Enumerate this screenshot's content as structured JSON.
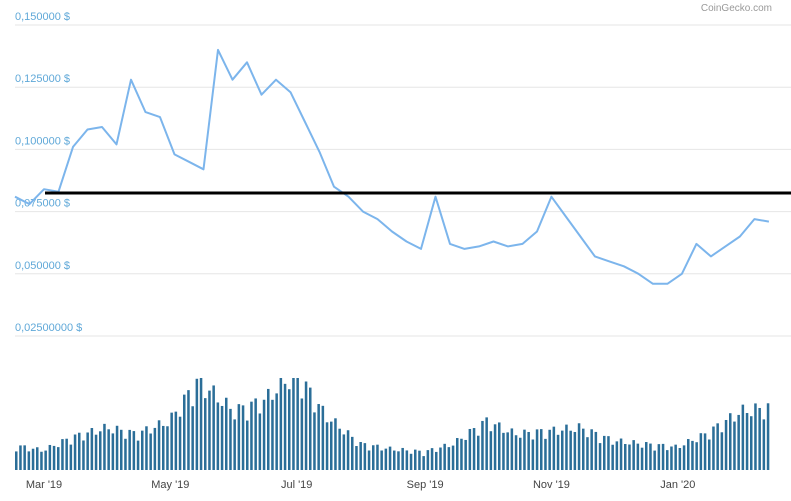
{
  "chart_data": {
    "type": "line",
    "credit": "CoinGecko.com",
    "y_ticks": [
      {
        "value": 0.15,
        "label": "0,150000 $"
      },
      {
        "value": 0.125,
        "label": "0,125000 $"
      },
      {
        "value": 0.1,
        "label": "0,100000 $"
      },
      {
        "value": 0.075,
        "label": "0,075000 $"
      },
      {
        "value": 0.05,
        "label": "0,050000 $"
      },
      {
        "value": 0.025,
        "label": "0,02500000 $"
      }
    ],
    "ylim": [
      0.025,
      0.15
    ],
    "x_ticks": [
      {
        "date": "2019-03-01",
        "label": "Mar '19"
      },
      {
        "date": "2019-05-01",
        "label": "May '19"
      },
      {
        "date": "2019-07-01",
        "label": "Jul '19"
      },
      {
        "date": "2019-09-01",
        "label": "Sep '19"
      },
      {
        "date": "2019-11-01",
        "label": "Nov '19"
      },
      {
        "date": "2020-01-01",
        "label": "Jan '20"
      }
    ],
    "xlim": [
      "2019-02-15",
      "2020-02-15"
    ],
    "grid": true,
    "colors": {
      "price_line": "#7cb5ec",
      "volume_bars": "#2b6e98",
      "reference_line": "#000000",
      "grid": "#e6e6e6"
    },
    "reference_line": {
      "value": 0.0825
    },
    "price": {
      "x": [
        "2019-02-15",
        "2019-02-22",
        "2019-03-01",
        "2019-03-08",
        "2019-03-15",
        "2019-03-22",
        "2019-03-29",
        "2019-04-05",
        "2019-04-12",
        "2019-04-19",
        "2019-04-26",
        "2019-05-03",
        "2019-05-10",
        "2019-05-17",
        "2019-05-24",
        "2019-05-31",
        "2019-06-07",
        "2019-06-14",
        "2019-06-21",
        "2019-06-28",
        "2019-07-05",
        "2019-07-12",
        "2019-07-19",
        "2019-07-26",
        "2019-08-02",
        "2019-08-09",
        "2019-08-16",
        "2019-08-23",
        "2019-08-30",
        "2019-09-06",
        "2019-09-13",
        "2019-09-20",
        "2019-09-27",
        "2019-10-04",
        "2019-10-11",
        "2019-10-18",
        "2019-10-25",
        "2019-11-01",
        "2019-11-08",
        "2019-11-15",
        "2019-11-22",
        "2019-11-29",
        "2019-12-06",
        "2019-12-13",
        "2019-12-20",
        "2019-12-27",
        "2020-01-03",
        "2020-01-10",
        "2020-01-17",
        "2020-01-24",
        "2020-01-31",
        "2020-02-07",
        "2020-02-14"
      ],
      "y": [
        0.081,
        0.078,
        0.084,
        0.083,
        0.101,
        0.108,
        0.109,
        0.102,
        0.128,
        0.115,
        0.113,
        0.098,
        0.095,
        0.092,
        0.14,
        0.128,
        0.135,
        0.122,
        0.128,
        0.123,
        0.111,
        0.099,
        0.085,
        0.081,
        0.075,
        0.072,
        0.067,
        0.063,
        0.06,
        0.081,
        0.062,
        0.06,
        0.061,
        0.063,
        0.061,
        0.062,
        0.067,
        0.081,
        0.073,
        0.065,
        0.057,
        0.055,
        0.053,
        0.05,
        0.046,
        0.046,
        0.05,
        0.062,
        0.057,
        0.061,
        0.065,
        0.072,
        0.071
      ]
    },
    "volume": {
      "x": [
        "2019-02-15",
        "2019-03-01",
        "2019-03-15",
        "2019-04-01",
        "2019-04-15",
        "2019-05-01",
        "2019-05-15",
        "2019-06-01",
        "2019-06-15",
        "2019-07-01",
        "2019-07-15",
        "2019-08-01",
        "2019-08-15",
        "2019-09-01",
        "2019-09-15",
        "2019-10-01",
        "2019-10-15",
        "2019-11-01",
        "2019-11-15",
        "2019-12-01",
        "2019-12-15",
        "2020-01-01",
        "2020-01-15",
        "2020-02-01",
        "2020-02-14"
      ],
      "y": [
        15,
        12,
        20,
        26,
        22,
        30,
        55,
        36,
        42,
        60,
        34,
        16,
        13,
        11,
        16,
        30,
        22,
        24,
        26,
        18,
        16,
        14,
        22,
        36,
        38
      ]
    }
  }
}
